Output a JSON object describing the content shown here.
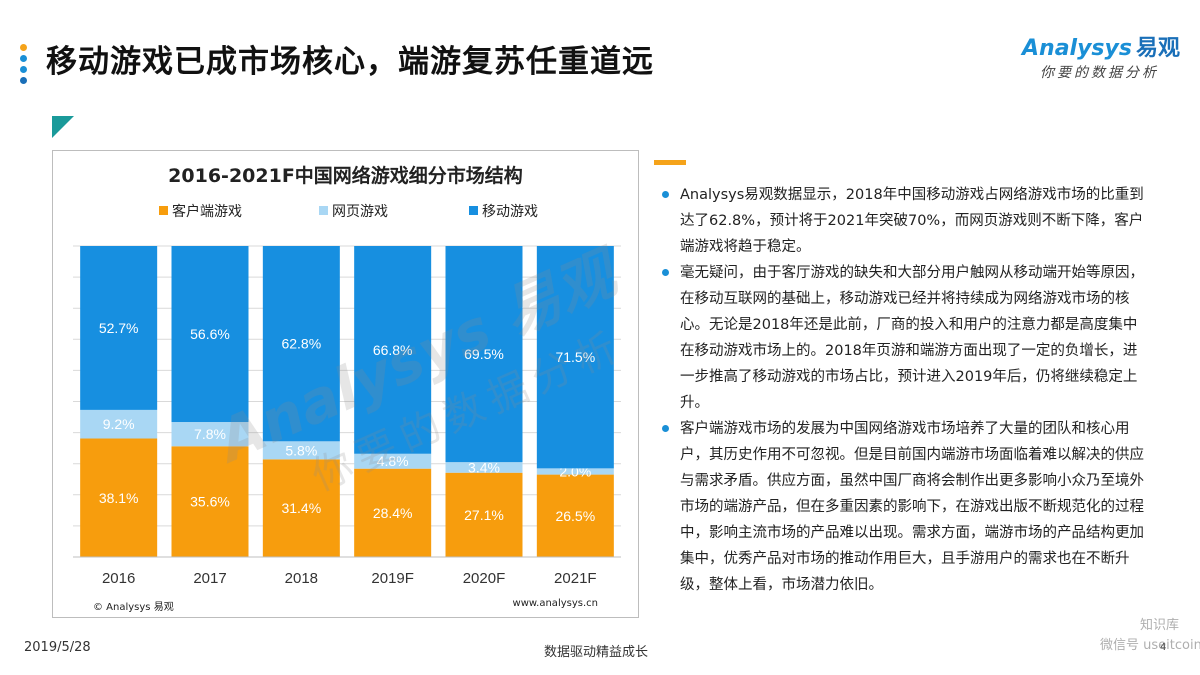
{
  "header": {
    "title": "移动游戏已成市场核心，端游复苏任重道远",
    "dot_colors": [
      "#f5a31a",
      "#1a8fd6",
      "#1a8fd6",
      "#1a6fb8"
    ]
  },
  "logo": {
    "brand": "Analysys",
    "brand_cn": "易观",
    "tagline": "你要的数据分析"
  },
  "chart": {
    "source_left": "© Analysys 易观",
    "source_right": "www.analysys.cn",
    "watermark": {
      "line1": "Analysys 易观",
      "line2": "你要的数据分析"
    }
  },
  "chart_data": {
    "type": "bar",
    "stacked": true,
    "title": "2016-2021F中国网络游戏细分市场结构",
    "categories": [
      "2016",
      "2017",
      "2018",
      "2019F",
      "2020F",
      "2021F"
    ],
    "series": [
      {
        "name": "客户端游戏",
        "color": "#f79d0d",
        "values": [
          38.1,
          35.6,
          31.4,
          28.4,
          27.1,
          26.5
        ],
        "labels": [
          "38.1%",
          "35.6%",
          "31.4%",
          "28.4%",
          "27.1%",
          "26.5%"
        ]
      },
      {
        "name": "网页游戏",
        "color": "#a9d7f4",
        "values": [
          9.2,
          7.8,
          5.8,
          4.8,
          3.4,
          2.0
        ],
        "labels": [
          "9.2%",
          "7.8%",
          "5.8%",
          "4.8%",
          "3.4%",
          "2.0%"
        ]
      },
      {
        "name": "移动游戏",
        "color": "#178fe0",
        "values": [
          52.7,
          56.6,
          62.8,
          66.8,
          69.5,
          71.5
        ],
        "labels": [
          "52.7%",
          "56.6%",
          "62.8%",
          "66.8%",
          "69.5%",
          "71.5%"
        ]
      }
    ],
    "ylim": [
      0,
      100
    ],
    "grid": true,
    "legend_position": "top"
  },
  "text": {
    "paragraphs": [
      "Analysys易观数据显示，2018年中国移动游戏占网络游戏市场的比重到达了62.8%，预计将于2021年突破70%，而网页游戏则不断下降，客户端游戏将趋于稳定。",
      "毫无疑问，由于客厅游戏的缺失和大部分用户触网从移动端开始等原因，在移动互联网的基础上，移动游戏已经并将持续成为网络游戏市场的核心。无论是2018年还是此前，厂商的投入和用户的注意力都是高度集中在移动游戏市场上的。2018年页游和端游方面出现了一定的负增长，进一步推高了移动游戏的市场占比，预计进入2019年后，仍将继续稳定上升。",
      "客户端游戏市场的发展为中国网络游戏市场培养了大量的团队和核心用户，其历史作用不可忽视。但是目前国内端游市场面临着难以解决的供应与需求矛盾。供应方面，虽然中国厂商将会制作出更多影响小众乃至境外市场的端游产品，但在多重因素的影响下，在游戏出版不断规范化的过程中，影响主流市场的产品难以出现。需求方面，端游市场的产品结构更加集中，优秀产品对市场的推动作用巨大，且手游用户的需求也在不断升级，整体上看，市场潜力依旧。"
    ]
  },
  "footer": {
    "date": "2019/5/28",
    "slogan": "数据驱动精益成长",
    "page": "4",
    "stamp_line1": "知识库",
    "stamp_line2": "微信号 useitcoin"
  }
}
